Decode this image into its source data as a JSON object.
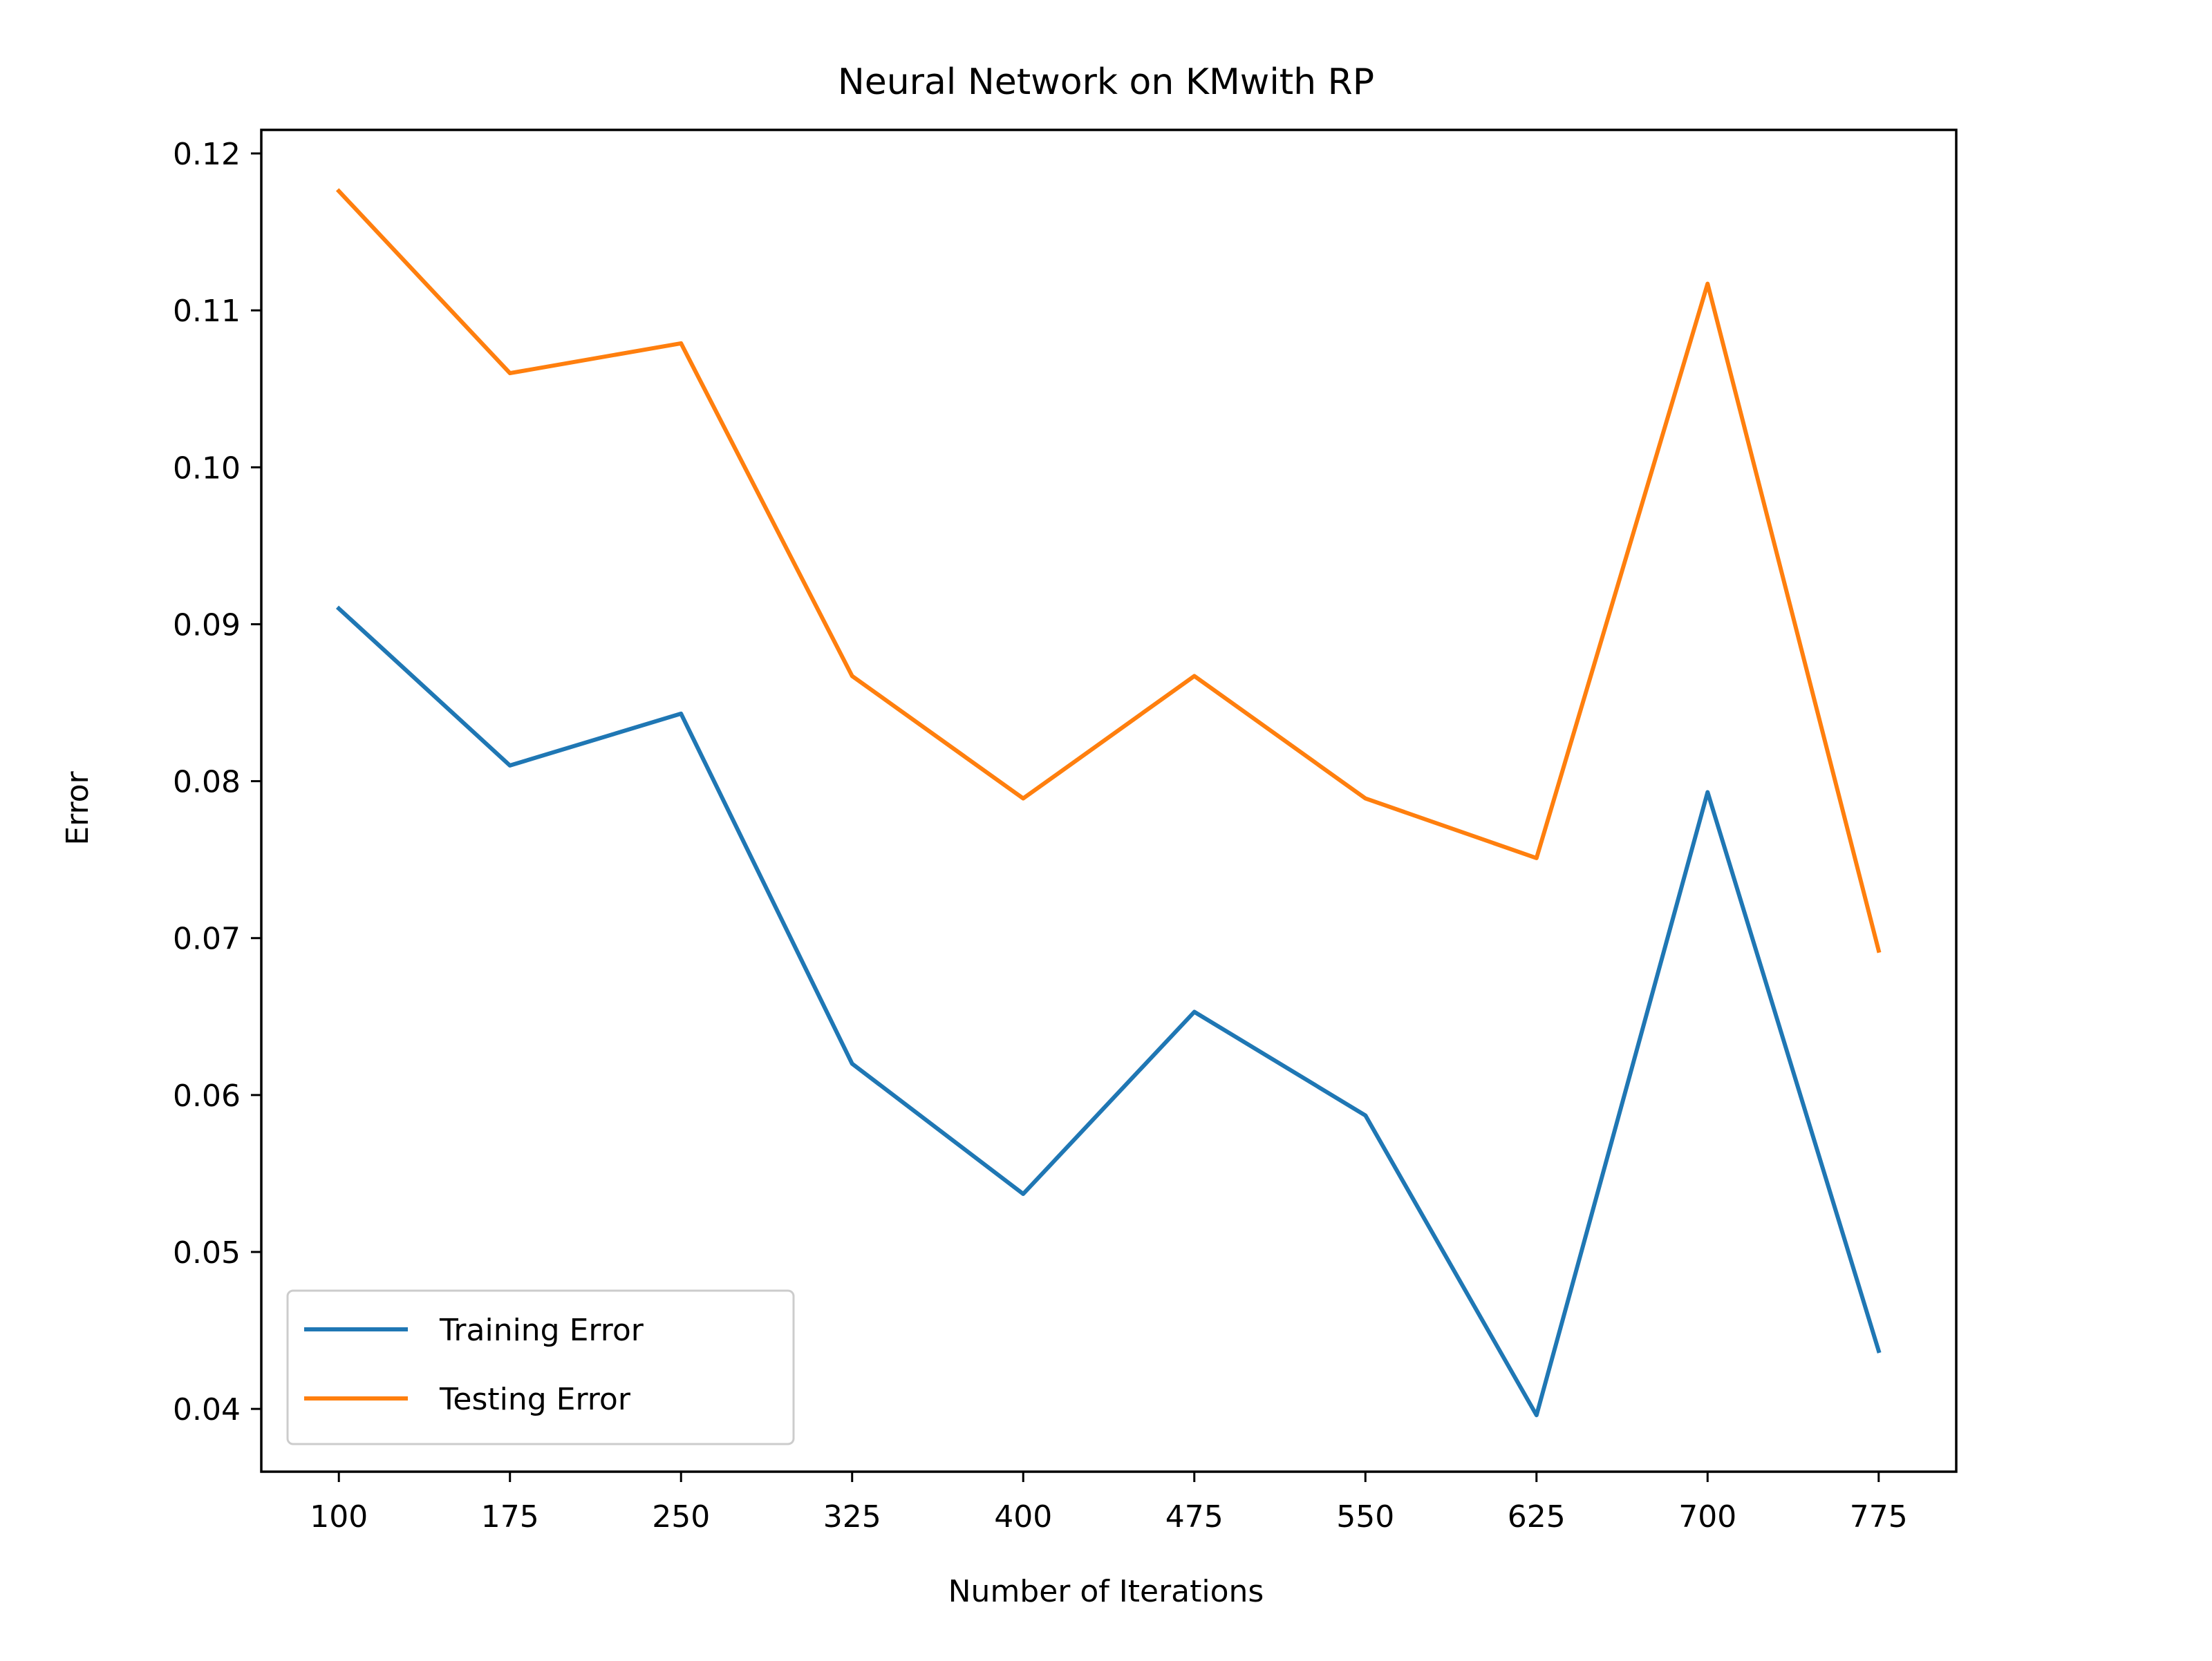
{
  "chart_data": {
    "type": "line",
    "title": "Neural Network on KMwith RP",
    "xlabel": "Number of Iterations",
    "ylabel": "Error",
    "x": [
      100,
      175,
      250,
      325,
      400,
      475,
      550,
      625,
      700,
      775
    ],
    "x_ticks": [
      "100",
      "175",
      "250",
      "325",
      "400",
      "475",
      "550",
      "625",
      "700",
      "775"
    ],
    "y_ticks": [
      "0.04",
      "0.05",
      "0.06",
      "0.07",
      "0.08",
      "0.09",
      "0.10",
      "0.11",
      "0.12"
    ],
    "xlim": [
      66,
      809
    ],
    "ylim": [
      0.036,
      0.1215
    ],
    "grid": false,
    "legend_position": "lower-left",
    "series": [
      {
        "name": "Training Error",
        "color": "#1f77b4",
        "values": [
          0.091,
          0.081,
          0.0843,
          0.062,
          0.0537,
          0.0653,
          0.0587,
          0.0396,
          0.0793,
          0.0437
        ]
      },
      {
        "name": "Testing Error",
        "color": "#ff7f0e",
        "values": [
          0.1176,
          0.106,
          0.1079,
          0.0867,
          0.0789,
          0.0867,
          0.0789,
          0.0751,
          0.1117,
          0.0692
        ]
      }
    ]
  }
}
